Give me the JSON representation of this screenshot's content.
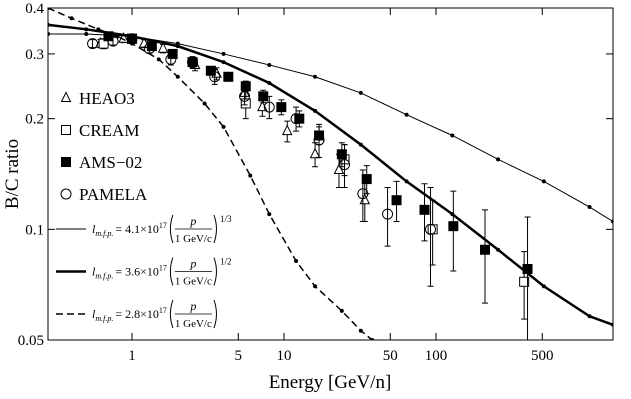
{
  "chart_data": {
    "type": "scatter",
    "x_label": "Energy [GeV/n]",
    "y_label": "B/C ratio",
    "xlim": [
      0.28,
      1460
    ],
    "ylim": [
      0.05,
      0.4
    ],
    "xticks": [
      1,
      5,
      10,
      50,
      100,
      500
    ],
    "yticks": [
      0.05,
      0.1,
      0.2,
      0.3,
      0.4
    ],
    "log_x": true,
    "log_y": true,
    "legend": "left",
    "series": [
      {
        "name": "HEAO3",
        "type": "scatter",
        "marker": "triangle-open",
        "color": "#000000",
        "x": [
          0.62,
          0.88,
          1.2,
          1.6,
          2.6,
          3.6,
          5.5,
          7.2,
          10.5,
          16,
          23,
          34
        ],
        "values": [
          0.32,
          0.33,
          0.32,
          0.31,
          0.28,
          0.265,
          0.235,
          0.215,
          0.185,
          0.16,
          0.145,
          0.12
        ],
        "yerr": [
          0.008,
          0.008,
          0.008,
          0.008,
          0.01,
          0.01,
          0.012,
          0.012,
          0.012,
          0.012,
          0.015,
          0.015
        ]
      },
      {
        "name": "CREAM",
        "type": "scatter",
        "marker": "square-open",
        "color": "#000000",
        "x": [
          0.65,
          1.0,
          5.6,
          25,
          95,
          380
        ],
        "values": [
          0.32,
          0.33,
          0.22,
          0.155,
          0.1,
          0.072
        ],
        "yerr": [
          0.01,
          0.01,
          0.02,
          0.015,
          0.02,
          0.015
        ]
      },
      {
        "name": "AMS−02",
        "type": "scatter",
        "marker": "square-filled",
        "color": "#000000",
        "x": [
          0.7,
          1.0,
          1.35,
          1.85,
          2.5,
          3.3,
          4.3,
          5.6,
          7.3,
          9.6,
          12.6,
          17,
          24,
          35,
          55,
          84,
          130,
          210,
          400
        ],
        "values": [
          0.335,
          0.33,
          0.315,
          0.3,
          0.285,
          0.27,
          0.26,
          0.245,
          0.23,
          0.215,
          0.2,
          0.18,
          0.16,
          0.137,
          0.12,
          0.113,
          0.102,
          0.088,
          0.078
        ],
        "yerr": [
          0.005,
          0.005,
          0.005,
          0.005,
          0.006,
          0.006,
          0.007,
          0.008,
          0.009,
          0.01,
          0.01,
          0.01,
          0.012,
          0.012,
          0.015,
          0.02,
          0.025,
          0.025,
          0.03
        ]
      },
      {
        "name": "PAMELA",
        "type": "scatter",
        "marker": "circle-open",
        "color": "#000000",
        "x": [
          0.55,
          0.75,
          1.0,
          1.3,
          1.8,
          2.5,
          3.5,
          5.5,
          8,
          12,
          17,
          25,
          33,
          48,
          92
        ],
        "values": [
          0.32,
          0.325,
          0.33,
          0.31,
          0.29,
          0.285,
          0.26,
          0.23,
          0.215,
          0.2,
          0.175,
          0.15,
          0.125,
          0.11,
          0.1
        ],
        "yerr": [
          0.008,
          0.008,
          0.008,
          0.008,
          0.01,
          0.01,
          0.012,
          0.012,
          0.015,
          0.015,
          0.018,
          0.02,
          0.02,
          0.02,
          0.03
        ]
      },
      {
        "name": "l",
        "subscript": "m.f.p.",
        "coefficient": "= 4.1×10",
        "exponent": "17",
        "numerator": "p",
        "denominator": "1 GeV/c",
        "power": "1/3",
        "type": "line",
        "line_width": 1,
        "dash": false,
        "color": "#000000",
        "x": [
          0.28,
          0.5,
          1,
          2,
          4,
          8,
          16,
          32,
          64,
          128,
          256,
          512,
          1024,
          1460
        ],
        "values": [
          0.34,
          0.34,
          0.335,
          0.32,
          0.3,
          0.28,
          0.26,
          0.235,
          0.205,
          0.18,
          0.155,
          0.135,
          0.115,
          0.105
        ]
      },
      {
        "name": "l",
        "subscript": "m.f.p.",
        "coefficient": "= 3.6×10",
        "exponent": "17",
        "numerator": "p",
        "denominator": "1 GeV/c",
        "power": "1/2",
        "type": "line",
        "line_width": 2.5,
        "dash": false,
        "color": "#000000",
        "x": [
          0.28,
          0.5,
          1,
          2,
          4,
          8,
          16,
          32,
          64,
          128,
          256,
          512,
          1024,
          1460
        ],
        "values": [
          0.36,
          0.35,
          0.335,
          0.315,
          0.285,
          0.25,
          0.21,
          0.17,
          0.135,
          0.11,
          0.088,
          0.07,
          0.058,
          0.055
        ]
      },
      {
        "name": "l",
        "subscript": "m.f.p.",
        "coefficient": "= 2.8×10",
        "exponent": "17",
        "numerator": "p",
        "denominator": "1 GeV/c",
        "type": "line",
        "line_width": 1.5,
        "dash": true,
        "color": "#000000",
        "x": [
          0.28,
          0.4,
          0.6,
          0.8,
          1,
          1.5,
          2,
          3,
          4,
          6,
          8,
          12,
          16,
          24,
          32,
          38
        ],
        "values": [
          0.4,
          0.375,
          0.35,
          0.335,
          0.32,
          0.29,
          0.26,
          0.22,
          0.19,
          0.14,
          0.11,
          0.082,
          0.07,
          0.06,
          0.053,
          0.05
        ]
      }
    ]
  }
}
